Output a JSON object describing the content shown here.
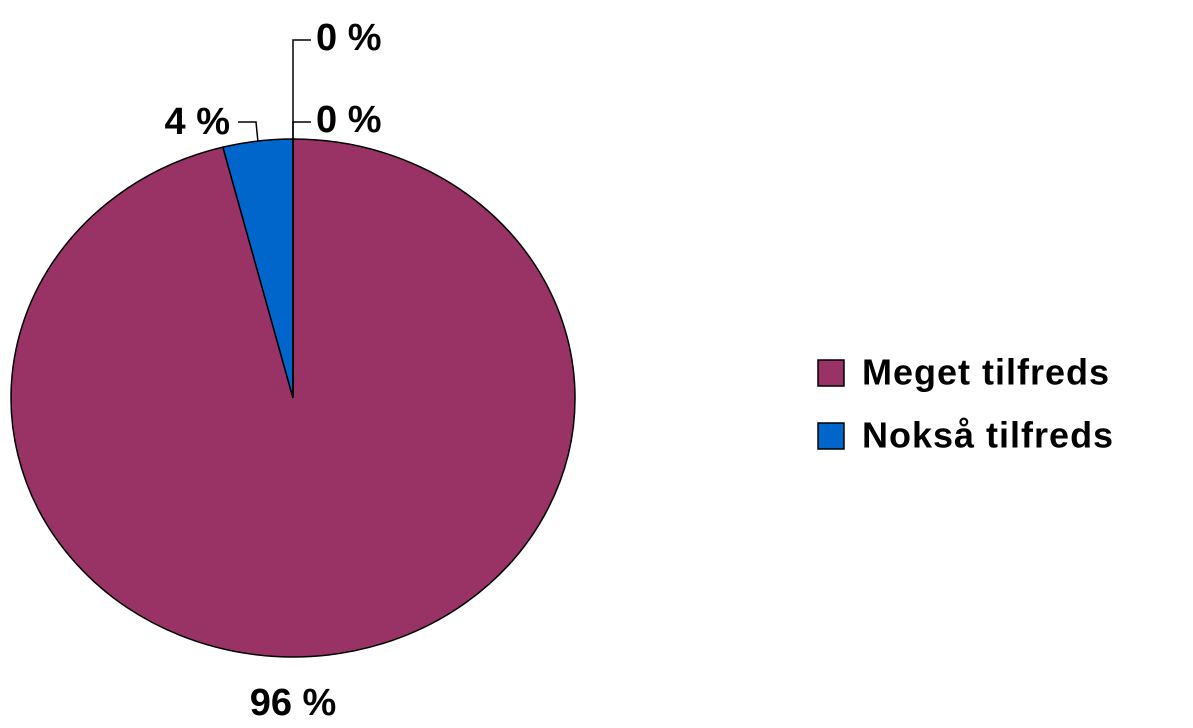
{
  "chart_data": {
    "type": "pie",
    "categories": [
      "Meget tilfreds",
      "Nokså tilfreds",
      null,
      null
    ],
    "values": [
      96,
      4,
      0,
      0
    ],
    "value_labels": [
      "96 %",
      "4 %",
      "0 %",
      "0 %"
    ],
    "colors": [
      "#993366",
      "#0066cc",
      null,
      null
    ],
    "legend": "right"
  }
}
